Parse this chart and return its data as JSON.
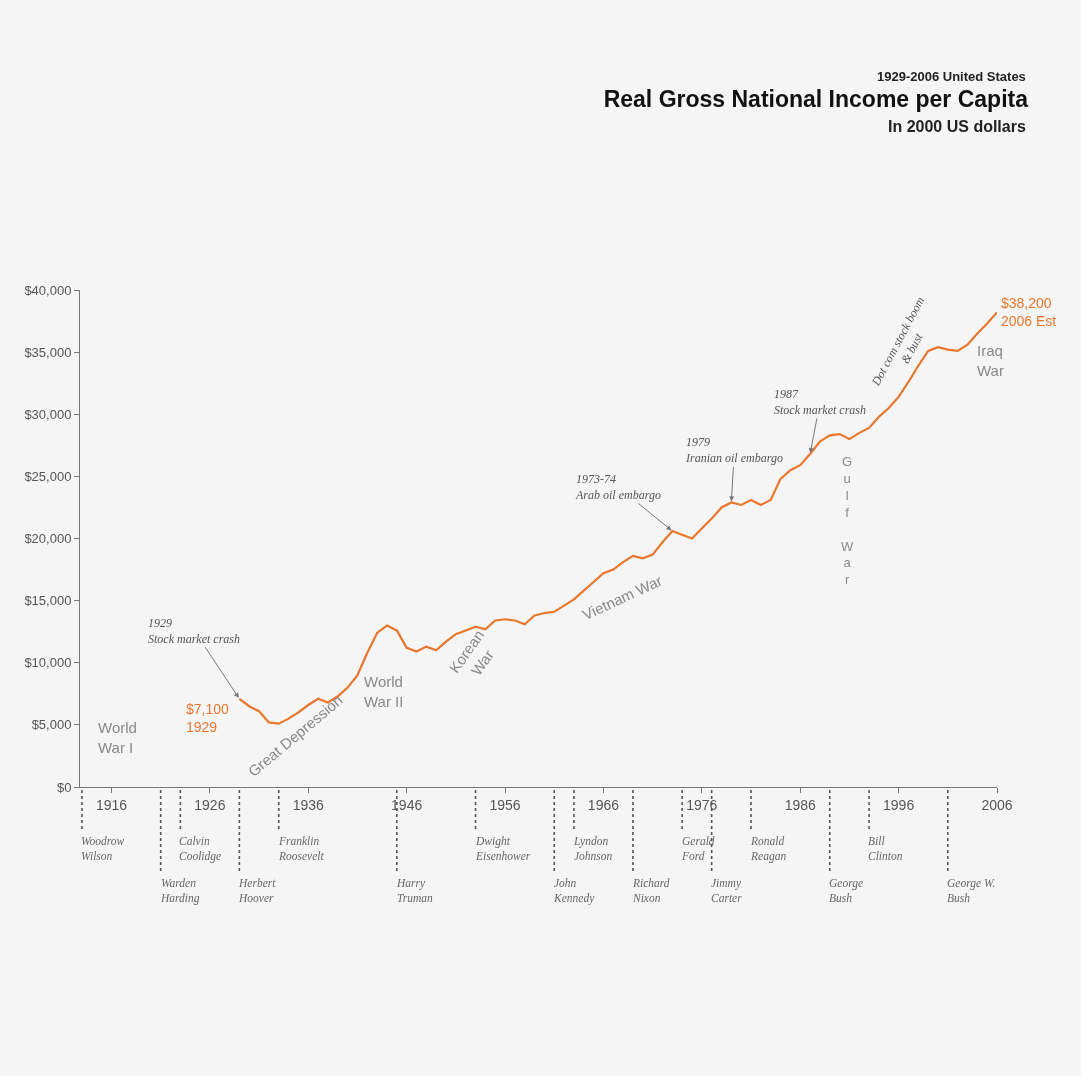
{
  "chart_data": {
    "type": "line",
    "title": "Real Gross National Income per Capita",
    "subtitle": "In 2000 US dollars",
    "x": [
      1929,
      1930,
      1931,
      1932,
      1933,
      1934,
      1935,
      1936,
      1937,
      1938,
      1939,
      1940,
      1941,
      1942,
      1943,
      1944,
      1945,
      1946,
      1947,
      1948,
      1949,
      1950,
      1951,
      1952,
      1953,
      1954,
      1955,
      1956,
      1957,
      1958,
      1959,
      1960,
      1961,
      1962,
      1963,
      1964,
      1965,
      1966,
      1967,
      1968,
      1969,
      1970,
      1971,
      1972,
      1973,
      1974,
      1975,
      1976,
      1977,
      1978,
      1979,
      1980,
      1981,
      1982,
      1983,
      1984,
      1985,
      1986,
      1987,
      1988,
      1989,
      1990,
      1991,
      1992,
      1993,
      1994,
      1995,
      1996,
      1997,
      1998,
      1999,
      2000,
      2001,
      2002,
      2003,
      2004,
      2005,
      2006
    ],
    "series": [
      {
        "color": "#e8762d",
        "values": [
          7100,
          6500,
          6100,
          5200,
          5100,
          5500,
          6000,
          6600,
          7100,
          6800,
          7300,
          8000,
          9000,
          10800,
          12400,
          13000,
          12600,
          11200,
          10900,
          11300,
          11000,
          11700,
          12300,
          12600,
          12900,
          12700,
          13400,
          13500,
          13400,
          13100,
          13800,
          14000,
          14100,
          14600,
          15100,
          15800,
          16500,
          17200,
          17500,
          18100,
          18600,
          18400,
          18700,
          19700,
          20600,
          20300,
          20000,
          20800,
          21600,
          22500,
          22900,
          22700,
          23100,
          22700,
          23100,
          24800,
          25500,
          25900,
          26800,
          27800,
          28300,
          28400,
          28000,
          28500,
          28900,
          29800,
          30500,
          31400,
          32600,
          33900,
          35100,
          35400,
          35200,
          35100,
          35600,
          36500,
          37300,
          38200
        ]
      }
    ],
    "xlim": [
      1912.8,
      2006
    ],
    "xticks": [
      1916,
      1926,
      1936,
      1946,
      1956,
      1966,
      1976,
      1986,
      1996,
      2006
    ],
    "ylim": [
      0,
      40000
    ],
    "yticks": [
      {
        "value": 0,
        "label": "$0"
      },
      {
        "value": 5000,
        "label": "$5,000"
      },
      {
        "value": 10000,
        "label": "$10,000"
      },
      {
        "value": 15000,
        "label": "$15,000"
      },
      {
        "value": 20000,
        "label": "$20,000"
      },
      {
        "value": 25000,
        "label": "$25,000"
      },
      {
        "value": 30000,
        "label": "$30,000"
      },
      {
        "value": 35000,
        "label": "$35,000"
      },
      {
        "value": 40000,
        "label": "$40,000"
      }
    ],
    "grid": false,
    "marker": "none",
    "line_style": "solid",
    "ref_lines": [
      {
        "axis": "x",
        "value": 1913,
        "label": "Woodrow Wilson",
        "line_style": "dotted"
      },
      {
        "axis": "x",
        "value": 1921,
        "label": "Warden Harding",
        "line_style": "dotted"
      },
      {
        "axis": "x",
        "value": 1923,
        "label": "Calvin Coolidge",
        "line_style": "dotted"
      },
      {
        "axis": "x",
        "value": 1929,
        "label": "Herbert Hoover",
        "line_style": "dotted"
      },
      {
        "axis": "x",
        "value": 1933,
        "label": "Franklin Roosevelt",
        "line_style": "dotted"
      },
      {
        "axis": "x",
        "value": 1945,
        "label": "Harry Truman",
        "line_style": "dotted"
      },
      {
        "axis": "x",
        "value": 1953,
        "label": "Dwight Eisenhower",
        "line_style": "dotted"
      },
      {
        "axis": "x",
        "value": 1961,
        "label": "John Kennedy",
        "line_style": "dotted"
      },
      {
        "axis": "x",
        "value": 1963,
        "label": "Lyndon Johnson",
        "line_style": "dotted"
      },
      {
        "axis": "x",
        "value": 1969,
        "label": "Richard Nixon",
        "line_style": "dotted"
      },
      {
        "axis": "x",
        "value": 1974,
        "label": "Gerald Ford",
        "line_style": "dotted"
      },
      {
        "axis": "x",
        "value": 1977,
        "label": "Jimmy Carter",
        "line_style": "dotted"
      },
      {
        "axis": "x",
        "value": 1981,
        "label": "Ronald Reagan",
        "line_style": "dotted"
      },
      {
        "axis": "x",
        "value": 1989,
        "label": "George Bush",
        "line_style": "dotted"
      },
      {
        "axis": "x",
        "value": 1993,
        "label": "Bill Clinton",
        "line_style": "dotted"
      },
      {
        "axis": "x",
        "value": 2001,
        "label": "George W. Bush",
        "line_style": "dotted"
      }
    ],
    "annotations": [
      "1929-2006 United States",
      {
        "text": "1929\nStock market crash",
        "x": 1929,
        "y": 7100
      },
      {
        "text": "1973-74\nArab oil embargo",
        "x": 1973,
        "y": 20600
      },
      {
        "text": "1979\nIranian oil embargo",
        "x": 1979,
        "y": 22900
      },
      {
        "text": "1987\nStock market crash",
        "x": 1987,
        "y": 26800
      },
      "Dot com stock boom\n& bust",
      "World\nWar I",
      "Great Depression",
      "World\nWar II",
      "Korean\nWar",
      "Vietnam War",
      "Gulf War",
      "Iraq\nWar",
      {
        "text": "$7,100\n1929",
        "x": 1929,
        "y": 7100
      },
      {
        "text": "$38,200\n2006 Est",
        "x": 2006,
        "y": 38200
      }
    ]
  }
}
